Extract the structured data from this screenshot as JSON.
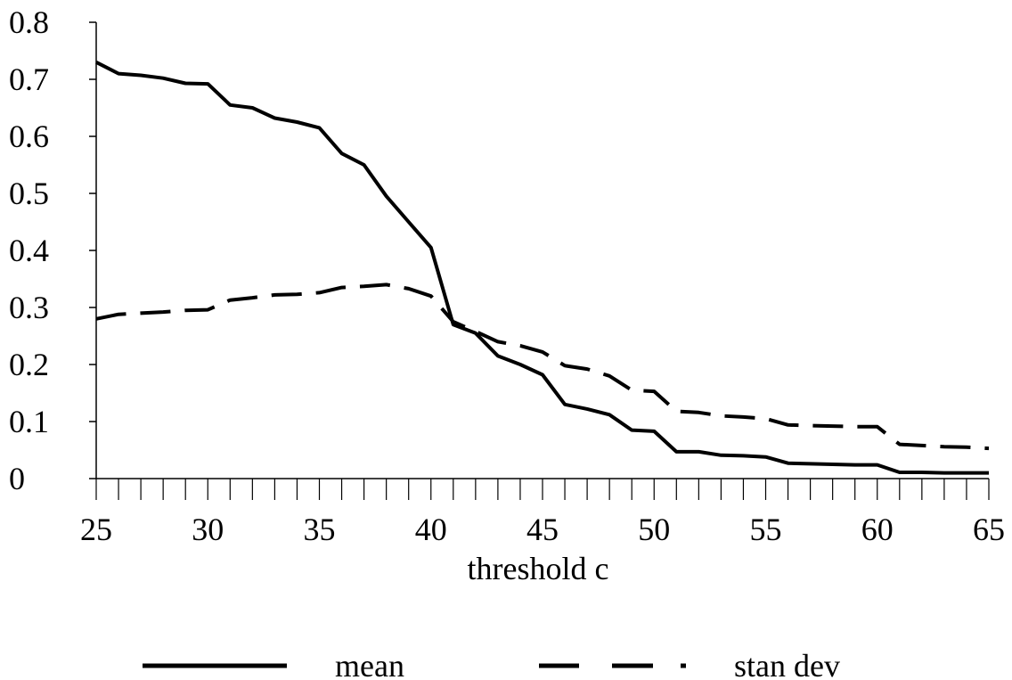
{
  "chart_data": {
    "type": "line",
    "title": "",
    "xlabel": "threshold c",
    "ylabel": "",
    "xlim": [
      25,
      65
    ],
    "ylim": [
      0,
      0.8
    ],
    "x_ticks": [
      "25",
      "30",
      "35",
      "40",
      "45",
      "50",
      "55",
      "60",
      "65"
    ],
    "y_ticks": [
      "0",
      "0.1",
      "0.2",
      "0.3",
      "0.4",
      "0.5",
      "0.6",
      "0.7",
      "0.8"
    ],
    "grid": false,
    "legend_position": "bottom",
    "x": [
      25,
      26,
      27,
      28,
      29,
      30,
      31,
      32,
      33,
      34,
      35,
      36,
      37,
      38,
      39,
      40,
      41,
      42,
      43,
      44,
      45,
      46,
      47,
      48,
      49,
      50,
      51,
      52,
      53,
      54,
      55,
      56,
      57,
      58,
      59,
      60,
      61,
      62,
      63,
      64,
      65
    ],
    "series": [
      {
        "name": "mean",
        "style": "solid",
        "color": "#000000",
        "values": [
          0.73,
          0.71,
          0.707,
          0.702,
          0.693,
          0.692,
          0.655,
          0.65,
          0.632,
          0.625,
          0.615,
          0.57,
          0.55,
          0.495,
          0.45,
          0.405,
          0.27,
          0.255,
          0.215,
          0.2,
          0.182,
          0.13,
          0.122,
          0.112,
          0.085,
          0.083,
          0.047,
          0.047,
          0.041,
          0.04,
          0.038,
          0.027,
          0.026,
          0.025,
          0.024,
          0.024,
          0.011,
          0.011,
          0.01,
          0.01,
          0.01
        ]
      },
      {
        "name": "stan dev",
        "style": "dashed",
        "color": "#000000",
        "values": [
          0.28,
          0.288,
          0.29,
          0.292,
          0.295,
          0.296,
          0.313,
          0.317,
          0.322,
          0.323,
          0.326,
          0.335,
          0.337,
          0.34,
          0.333,
          0.32,
          0.275,
          0.258,
          0.24,
          0.233,
          0.222,
          0.198,
          0.192,
          0.18,
          0.155,
          0.153,
          0.118,
          0.116,
          0.11,
          0.108,
          0.105,
          0.094,
          0.093,
          0.092,
          0.091,
          0.091,
          0.06,
          0.058,
          0.056,
          0.055,
          0.053
        ]
      }
    ]
  }
}
